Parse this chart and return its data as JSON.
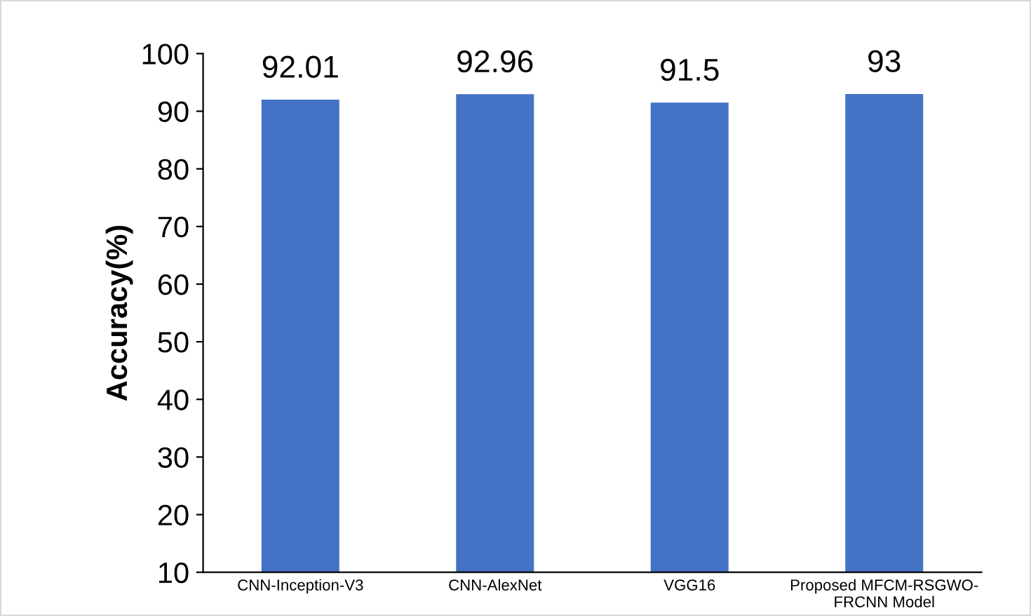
{
  "chart_data": {
    "type": "bar",
    "ylabel": "Accuracy(%)",
    "categories": [
      "CNN-Inception-V3",
      "CNN-AlexNet",
      "VGG16",
      "Proposed MFCM-RSGWO-\nFRCNN Model"
    ],
    "values": [
      92.01,
      92.96,
      91.5,
      93
    ],
    "color": "#4472c4",
    "ylim": [
      10,
      100
    ],
    "yticks": [
      10,
      20,
      30,
      40,
      50,
      60,
      70,
      80,
      90,
      100
    ],
    "grid": false,
    "data_labels": true
  }
}
